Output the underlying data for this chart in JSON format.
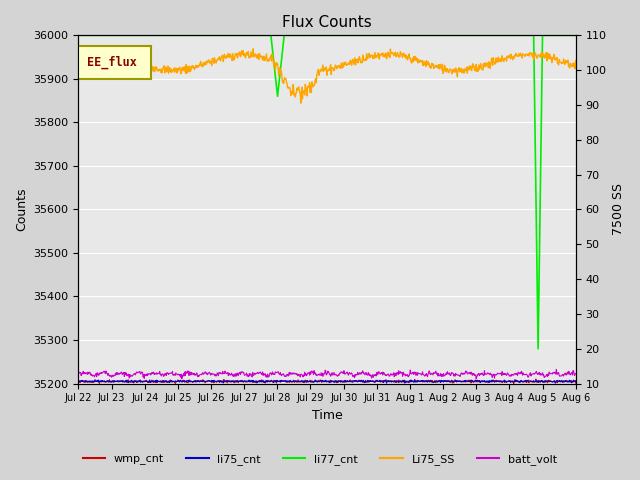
{
  "title": "Flux Counts",
  "xlabel": "Time",
  "ylabel_left": "Counts",
  "ylabel_right": "7500 SS",
  "ylim_left": [
    35200,
    36000
  ],
  "ylim_right": [
    10,
    110
  ],
  "fig_bg_color": "#d4d4d4",
  "plot_bg_color": "#e8e8e8",
  "legend_label": "EE_flux",
  "series": {
    "li77_cnt": {
      "color": "#00ee00",
      "lw": 1.2
    },
    "Li75_SS": {
      "color": "#ffa500",
      "lw": 1.0
    },
    "batt_volt": {
      "color": "#cc00cc",
      "lw": 0.8
    },
    "wmp_cnt": {
      "color": "#cc0000",
      "lw": 0.8
    },
    "li75_cnt": {
      "color": "#0000cc",
      "lw": 0.8
    }
  },
  "tick_labels": [
    "Jul 22",
    "Jul 23",
    "Jul 24",
    "Jul 25",
    "Jul 26",
    "Jul 27",
    "Jul 28",
    "Jul 29",
    "Jul 30",
    "Jul 31",
    "Aug 1",
    "Aug 2",
    "Aug 3",
    "Aug 4",
    "Aug 5",
    "Aug 6"
  ],
  "yticks_left": [
    35200,
    35300,
    35400,
    35500,
    35600,
    35700,
    35800,
    35900,
    36000
  ],
  "yticks_right": [
    10,
    20,
    30,
    40,
    50,
    60,
    70,
    80,
    90,
    100,
    110
  ],
  "n_days": 15,
  "n_points": 900
}
